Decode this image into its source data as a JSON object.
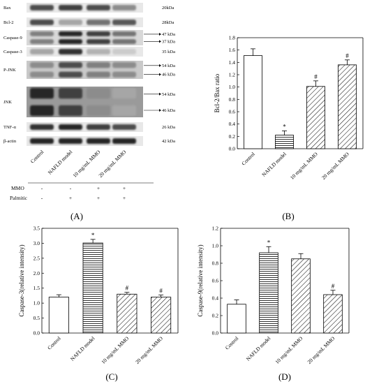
{
  "panel_labels": [
    "(A)",
    "(B)",
    "(C)",
    "(D)"
  ],
  "blot": {
    "rows": [
      {
        "protein": "Bax",
        "kda": "20kDa",
        "bands": [
          0.7,
          0.75,
          0.7,
          0.45
        ]
      },
      {
        "protein": "Bcl-2",
        "kda": "28kDa",
        "bands": [
          0.7,
          0.35,
          0.55,
          0.65
        ]
      },
      {
        "protein": "Caspase-9",
        "kda": "47 kDa\n37 kDa",
        "bands": [
          0.5,
          0.85,
          0.75,
          0.55
        ]
      },
      {
        "protein": "Caspase-3",
        "kda": "35 kDa",
        "bands": [
          0.35,
          0.8,
          0.3,
          0.2
        ]
      },
      {
        "protein": "P-JNK",
        "kda": "54 kDa\n46 kDa",
        "bands": [
          0.45,
          0.7,
          0.5,
          0.45
        ]
      },
      {
        "protein": "JNK",
        "kda": "54 kDa\n46 kDa",
        "bands": [
          0.85,
          0.75,
          0.45,
          0.35
        ]
      },
      {
        "protein": "TNF-α",
        "kda": "26 kDa",
        "bands": [
          0.8,
          0.85,
          0.75,
          0.7
        ]
      },
      {
        "protein": "β-actin",
        "kda": "42 kDa",
        "bands": [
          0.85,
          0.85,
          0.85,
          0.85
        ]
      }
    ],
    "lanes": [
      "Control",
      "NAFLD model",
      "10 mg/mL MMO",
      "20 mg/mL MMO"
    ],
    "treatments": [
      {
        "name": "MMO",
        "marks": [
          "-",
          "-",
          "+",
          "+"
        ]
      },
      {
        "name": "Palmitic",
        "marks": [
          "-",
          "+",
          "+",
          "+"
        ]
      }
    ]
  },
  "chart_data": [
    {
      "panel": "B",
      "type": "bar",
      "categories": [
        "Control",
        "NAFLD model",
        "10 mg/mL MMO",
        "20 mg/mL MMO"
      ],
      "values": [
        1.51,
        0.22,
        1.01,
        1.36
      ],
      "errors": [
        0.11,
        0.07,
        0.09,
        0.08
      ],
      "significance": [
        "",
        "*",
        "#",
        "#"
      ],
      "patterns": [
        "none",
        "horizontal",
        "diagonal",
        "diagonal"
      ],
      "ylabel": "Bcl-2/Bax ratio",
      "ylim": [
        0,
        1.8
      ],
      "yticks": [
        "0.0",
        "0.2",
        "0.4",
        "0.6",
        "0.8",
        "1.0",
        "1.2",
        "1.4",
        "1.6",
        "1.8"
      ]
    },
    {
      "panel": "C",
      "type": "bar",
      "categories": [
        "Control",
        "NAFLD model",
        "10 mg/mL MMO",
        "20 mg/mL MMO"
      ],
      "values": [
        1.2,
        3.01,
        1.3,
        1.2
      ],
      "errors": [
        0.08,
        0.12,
        0.06,
        0.07
      ],
      "significance": [
        "",
        "*",
        "#",
        "#"
      ],
      "patterns": [
        "none",
        "horizontal",
        "diagonal",
        "diagonal"
      ],
      "ylabel": "Caspase-3(relative intensity)",
      "ylim": [
        0,
        3.5
      ],
      "yticks": [
        "0.0",
        "0.5",
        "1.0",
        "1.5",
        "2.0",
        "2.5",
        "3.0",
        "3.5"
      ]
    },
    {
      "panel": "D",
      "type": "bar",
      "categories": [
        "Control",
        "NAFLD model",
        "10 mg/mL MMO",
        "20 mg/mL MMO"
      ],
      "values": [
        0.33,
        0.92,
        0.85,
        0.44
      ],
      "errors": [
        0.05,
        0.07,
        0.06,
        0.05
      ],
      "significance": [
        "",
        "*",
        "",
        "#"
      ],
      "patterns": [
        "none",
        "horizontal",
        "diagonal",
        "diagonal"
      ],
      "ylabel": "Caspase-9(relative intensity)",
      "ylim": [
        0,
        1.2
      ],
      "yticks": [
        "0.0",
        "0.2",
        "0.4",
        "0.6",
        "0.8",
        "1.0",
        "1.2"
      ]
    }
  ]
}
